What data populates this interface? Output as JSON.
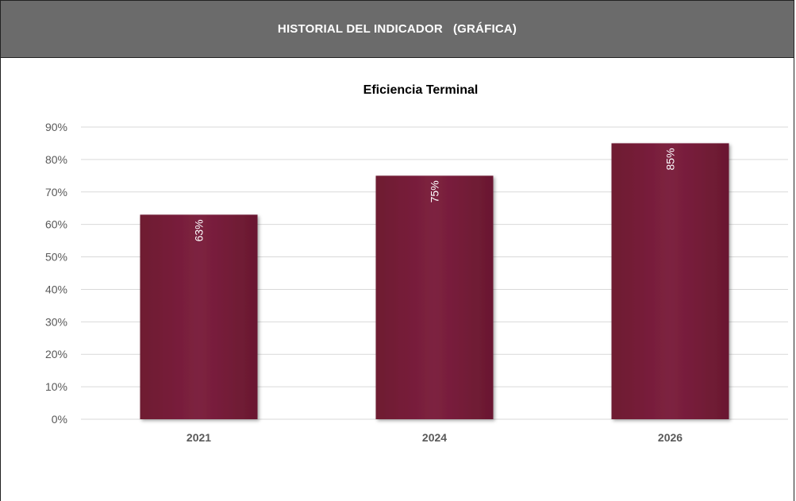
{
  "header": {
    "title": "HISTORIAL DEL INDICADOR   (GRÁFICA)"
  },
  "colors": {
    "header_bg": "#6b6b6b",
    "bar": "#7a1f38",
    "gridline": "#d9d9d9",
    "axis_text": "#595959"
  },
  "chart_data": {
    "type": "bar",
    "title": "Eficiencia Terminal",
    "categories": [
      "2021",
      "2024",
      "2026"
    ],
    "values": [
      63,
      75,
      85
    ],
    "data_labels": [
      "63%",
      "75%",
      "85%"
    ],
    "ylim": [
      0,
      90
    ],
    "ytick_step": 10,
    "ytick_format": "%",
    "grid": true,
    "legend": false,
    "xlabel": "",
    "ylabel": ""
  }
}
